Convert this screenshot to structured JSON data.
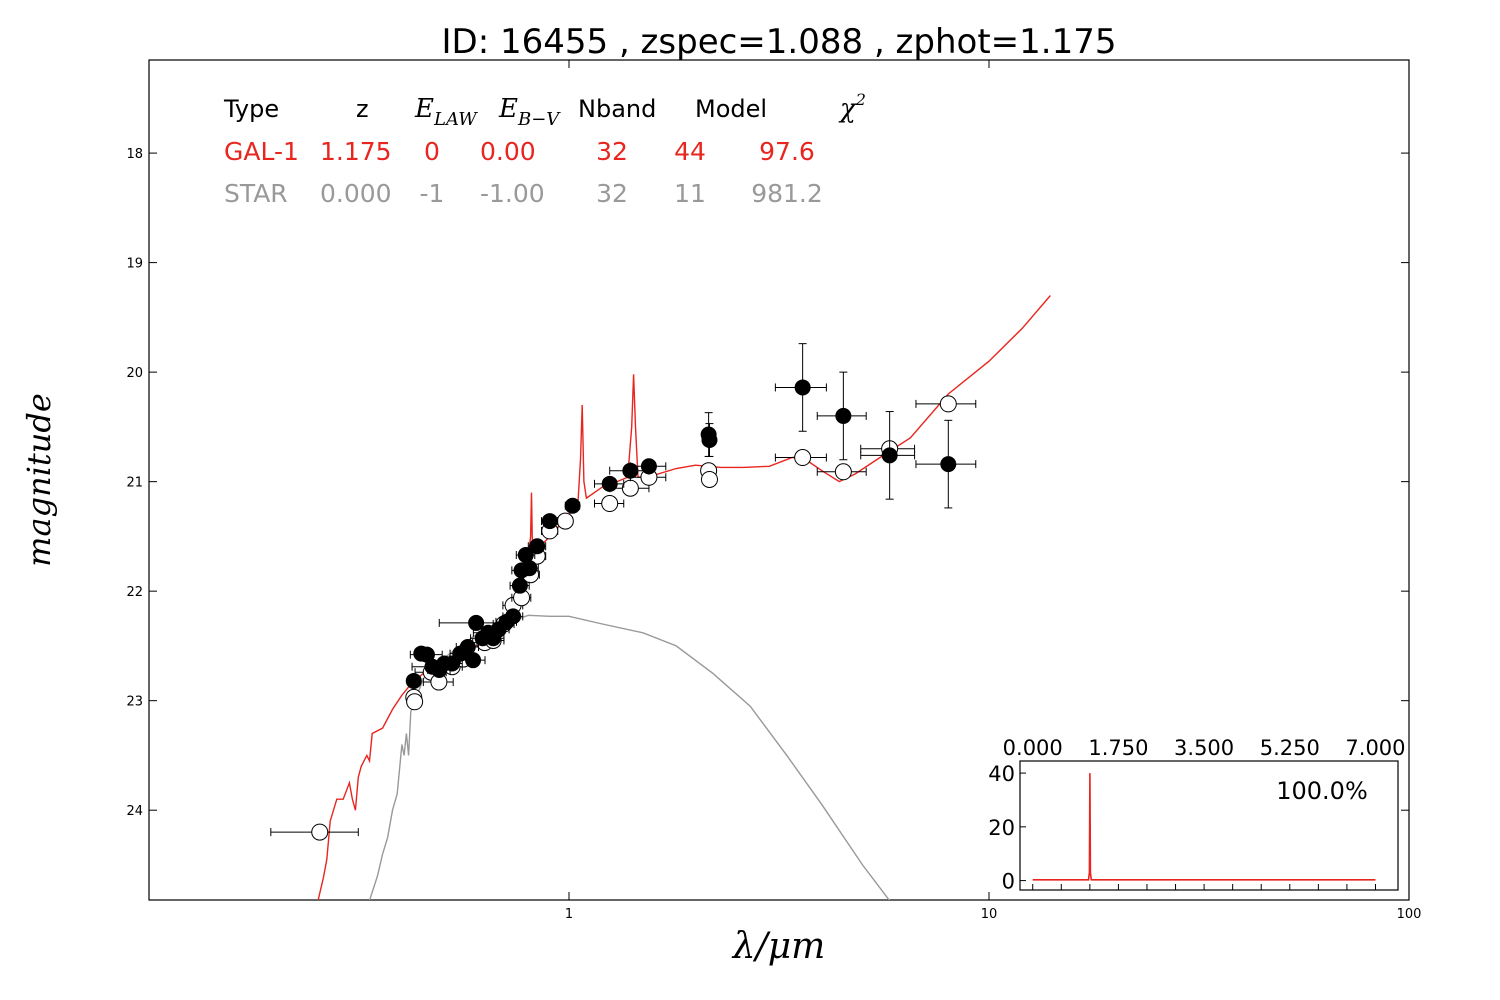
{
  "chart_data": {
    "type": "scatter",
    "title": "ID:  16455 , zspec=1.088 , zphot=1.175",
    "xlabel": "λ/μm",
    "ylabel": "magnitude",
    "x_scale": "log",
    "xlim": [
      0.1,
      100
    ],
    "ylim": [
      24.82,
      17.15
    ],
    "y_inverted": true,
    "x_ticks": [
      1,
      10,
      100
    ],
    "y_ticks": [
      18,
      19,
      20,
      21,
      22,
      23,
      24
    ],
    "fit_table": {
      "headers": [
        "Type",
        "z",
        "E_LAW",
        "E_B-V",
        "Nband",
        "Model",
        "χ²"
      ],
      "header_display": {
        "e_law_main": "E",
        "e_law_sub": "LAW",
        "e_bv_main": "E",
        "e_bv_sub": "B−V",
        "chi_main": "χ",
        "chi_sup": "2"
      },
      "rows": [
        {
          "color": "#e8251f",
          "values": [
            "GAL-1",
            "1.175",
            "0",
            "0.00",
            "32",
            "44",
            "97.6"
          ]
        },
        {
          "color": "#999999",
          "values": [
            "STAR",
            "0.000",
            "-1",
            "-1.00",
            "32",
            "11",
            "981.2"
          ]
        }
      ]
    },
    "observed": {
      "color": "#000000",
      "points": [
        [
          0.427,
          22.82,
          0.015,
          0,
          0
        ],
        [
          0.445,
          22.57,
          0.015,
          0,
          0
        ],
        [
          0.459,
          22.58,
          0.04,
          0,
          0
        ],
        [
          0.473,
          22.69,
          0.05,
          0,
          0
        ],
        [
          0.491,
          22.72,
          0.03,
          0,
          0
        ],
        [
          0.505,
          22.66,
          0.03,
          0,
          0
        ],
        [
          0.527,
          22.66,
          0.03,
          0,
          0
        ],
        [
          0.551,
          22.57,
          0.03,
          0,
          0
        ],
        [
          0.574,
          22.51,
          0.035,
          0,
          0
        ],
        [
          0.591,
          22.63,
          0.04,
          0,
          0
        ],
        [
          0.601,
          22.29,
          0.11,
          0,
          0
        ],
        [
          0.623,
          22.43,
          0.04,
          0,
          0
        ],
        [
          0.642,
          22.38,
          0.05,
          0,
          0
        ],
        [
          0.66,
          22.43,
          0.04,
          0,
          0
        ],
        [
          0.68,
          22.35,
          0.04,
          0,
          0
        ],
        [
          0.71,
          22.28,
          0.04,
          0,
          0
        ],
        [
          0.736,
          22.23,
          0.04,
          0,
          0
        ],
        [
          0.764,
          21.95,
          0.04,
          0,
          0
        ],
        [
          0.771,
          21.81,
          0.04,
          0,
          0
        ],
        [
          0.789,
          21.67,
          0.04,
          0,
          0
        ],
        [
          0.805,
          21.79,
          0.04,
          0,
          0
        ],
        [
          0.84,
          21.59,
          0.04,
          0,
          0
        ],
        [
          0.9,
          21.36,
          0.04,
          0,
          0
        ],
        [
          1.02,
          21.22,
          0.04,
          0,
          0
        ],
        [
          1.25,
          21.02,
          0.1,
          0,
          0
        ],
        [
          1.4,
          20.9,
          0.15,
          0,
          0
        ],
        [
          1.55,
          20.86,
          0.15,
          0,
          0
        ],
        [
          2.15,
          20.57,
          0.05,
          0.2,
          0.2
        ],
        [
          2.16,
          20.62,
          0.05,
          0.15,
          0.15
        ],
        [
          3.6,
          20.14,
          0.5,
          0.4,
          0.4
        ],
        [
          4.5,
          20.4,
          0.6,
          0.4,
          0.4
        ],
        [
          5.8,
          20.76,
          0.85,
          0.4,
          0.4
        ],
        [
          8.0,
          20.84,
          1.3,
          0.4,
          0.4
        ]
      ]
    },
    "model_points": {
      "color": "#ffffff",
      "points": [
        [
          0.255,
          24.2,
          0.06
        ],
        [
          0.427,
          22.97,
          0.015
        ],
        [
          0.429,
          23.01,
          0.015
        ],
        [
          0.47,
          22.74,
          0.04
        ],
        [
          0.49,
          22.83,
          0.04
        ],
        [
          0.527,
          22.69,
          0.03
        ],
        [
          0.56,
          22.62,
          0.04
        ],
        [
          0.63,
          22.47,
          0.04
        ],
        [
          0.66,
          22.45,
          0.04
        ],
        [
          0.7,
          22.3,
          0.04
        ],
        [
          0.736,
          22.13,
          0.04
        ],
        [
          0.771,
          22.06,
          0.04
        ],
        [
          0.81,
          21.85,
          0.04
        ],
        [
          0.84,
          21.68,
          0.04
        ],
        [
          0.9,
          21.45,
          0.04
        ],
        [
          0.98,
          21.36,
          0.04
        ],
        [
          1.25,
          21.2,
          0.1
        ],
        [
          1.4,
          21.06,
          0.15
        ],
        [
          1.55,
          20.96,
          0.15
        ],
        [
          2.15,
          20.9,
          0.05
        ],
        [
          2.16,
          20.98,
          0.05
        ],
        [
          3.6,
          20.78,
          0.5
        ],
        [
          4.5,
          20.91,
          0.6
        ],
        [
          5.8,
          20.7,
          0.85
        ],
        [
          8.0,
          20.29,
          1.3
        ]
      ]
    },
    "galaxy_model": {
      "color": "#e8251f",
      "points": [
        [
          0.25,
          24.9
        ],
        [
          0.26,
          24.62
        ],
        [
          0.265,
          24.45
        ],
        [
          0.27,
          24.1
        ],
        [
          0.28,
          23.9
        ],
        [
          0.29,
          23.9
        ],
        [
          0.3,
          23.75
        ],
        [
          0.305,
          23.9
        ],
        [
          0.31,
          24.0
        ],
        [
          0.315,
          23.7
        ],
        [
          0.32,
          23.6
        ],
        [
          0.33,
          23.5
        ],
        [
          0.335,
          23.55
        ],
        [
          0.34,
          23.3
        ],
        [
          0.36,
          23.25
        ],
        [
          0.38,
          23.08
        ],
        [
          0.4,
          22.95
        ],
        [
          0.42,
          22.85
        ],
        [
          0.45,
          22.75
        ],
        [
          0.5,
          22.68
        ],
        [
          0.55,
          22.6
        ],
        [
          0.6,
          22.5
        ],
        [
          0.65,
          22.45
        ],
        [
          0.7,
          22.32
        ],
        [
          0.75,
          22.2
        ],
        [
          0.78,
          21.9
        ],
        [
          0.8,
          21.7
        ],
        [
          0.81,
          21.5
        ],
        [
          0.814,
          21.1
        ],
        [
          0.818,
          21.6
        ],
        [
          0.85,
          21.6
        ],
        [
          0.9,
          21.5
        ],
        [
          0.95,
          21.4
        ],
        [
          1.0,
          21.3
        ],
        [
          1.05,
          21.2
        ],
        [
          1.065,
          20.8
        ],
        [
          1.075,
          20.3
        ],
        [
          1.085,
          21.0
        ],
        [
          1.1,
          21.15
        ],
        [
          1.2,
          21.05
        ],
        [
          1.3,
          21.0
        ],
        [
          1.38,
          20.96
        ],
        [
          1.41,
          20.5
        ],
        [
          1.425,
          20.02
        ],
        [
          1.44,
          20.5
        ],
        [
          1.46,
          20.96
        ],
        [
          1.6,
          20.94
        ],
        [
          1.8,
          20.88
        ],
        [
          2.0,
          20.85
        ],
        [
          2.3,
          20.87
        ],
        [
          2.6,
          20.87
        ],
        [
          3.0,
          20.86
        ],
        [
          3.4,
          20.78
        ],
        [
          3.6,
          20.78
        ],
        [
          4.0,
          20.9
        ],
        [
          4.4,
          21.0
        ],
        [
          4.8,
          20.93
        ],
        [
          5.5,
          20.78
        ],
        [
          6.5,
          20.6
        ],
        [
          8.0,
          20.2
        ],
        [
          10.0,
          19.9
        ],
        [
          12.0,
          19.6
        ],
        [
          14.0,
          19.3
        ]
      ]
    },
    "star_model": {
      "color": "#999999",
      "points": [
        [
          0.33,
          24.9
        ],
        [
          0.35,
          24.6
        ],
        [
          0.36,
          24.4
        ],
        [
          0.37,
          24.25
        ],
        [
          0.38,
          24.0
        ],
        [
          0.39,
          23.85
        ],
        [
          0.4,
          23.4
        ],
        [
          0.405,
          23.5
        ],
        [
          0.41,
          23.3
        ],
        [
          0.415,
          23.5
        ],
        [
          0.42,
          23.1
        ],
        [
          0.43,
          23.0
        ],
        [
          0.45,
          22.8
        ],
        [
          0.5,
          22.62
        ],
        [
          0.55,
          22.5
        ],
        [
          0.6,
          22.4
        ],
        [
          0.7,
          22.3
        ],
        [
          0.8,
          22.22
        ],
        [
          0.9,
          22.23
        ],
        [
          1.0,
          22.23
        ],
        [
          1.2,
          22.3
        ],
        [
          1.5,
          22.38
        ],
        [
          1.8,
          22.5
        ],
        [
          2.2,
          22.75
        ],
        [
          2.7,
          23.05
        ],
        [
          3.3,
          23.5
        ],
        [
          4.0,
          23.95
        ],
        [
          5.0,
          24.5
        ],
        [
          6.0,
          24.9
        ]
      ]
    },
    "inset": {
      "top_ticks": [
        "0.000",
        "1.750",
        "3.500",
        "5.250",
        "7.000"
      ],
      "y_ticks": [
        "0",
        "20",
        "40"
      ],
      "label": "100.0%",
      "color": "#e8251f",
      "xlim": [
        -0.26,
        7.46
      ],
      "ylim": [
        -3.5,
        44.5
      ],
      "pdz": [
        [
          0.0,
          0.3
        ],
        [
          1.14,
          0.3
        ],
        [
          1.158,
          3
        ],
        [
          1.168,
          40
        ],
        [
          1.178,
          3
        ],
        [
          1.196,
          0.3
        ],
        [
          7.0,
          0.3
        ]
      ]
    }
  }
}
